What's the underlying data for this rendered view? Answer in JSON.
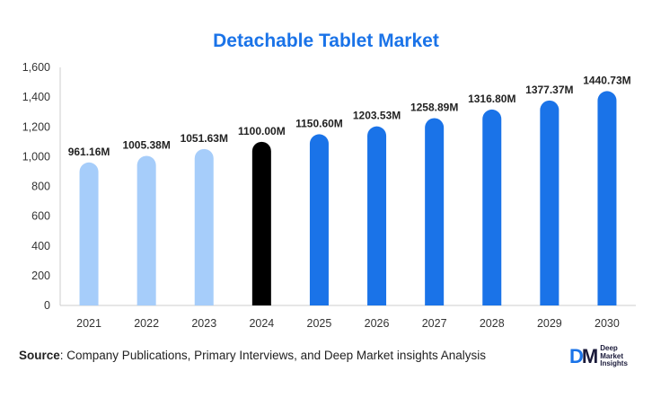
{
  "chart_data": {
    "type": "bar",
    "title": "Detachable Tablet Market",
    "xlabel": "",
    "ylabel": "",
    "ylim": [
      0,
      1600
    ],
    "yticks": [
      "0",
      "200",
      "400",
      "600",
      "800",
      "1,000",
      "1,200",
      "1,400",
      "1,600"
    ],
    "ytick_values": [
      0,
      200,
      400,
      600,
      800,
      1000,
      1200,
      1400,
      1600
    ],
    "categories": [
      "2021",
      "2022",
      "2023",
      "2024",
      "2025",
      "2026",
      "2027",
      "2028",
      "2029",
      "2030"
    ],
    "values": [
      961.16,
      1005.38,
      1051.63,
      1100.0,
      1150.6,
      1203.53,
      1258.89,
      1316.8,
      1377.37,
      1440.73
    ],
    "data_labels": [
      "961.16M",
      "1005.38M",
      "1051.63M",
      "1100.00M",
      "1150.60M",
      "1203.53M",
      "1258.89M",
      "1316.80M",
      "1377.37M",
      "1440.73M"
    ],
    "bar_colors": [
      "#a6cdfa",
      "#a6cdfa",
      "#a6cdfa",
      "#000000",
      "#1a73e8",
      "#1a73e8",
      "#1a73e8",
      "#1a73e8",
      "#1a73e8",
      "#1a73e8"
    ],
    "grid": false,
    "legend": "none"
  },
  "footer": {
    "source_key": "Source",
    "source_text": ": Company Publications, Primary Interviews, and Deep Market insights Analysis"
  },
  "logo": {
    "mark_d": "D",
    "mark_m": "M",
    "line1": "Deep",
    "line2": "Market",
    "line3": "Insights"
  }
}
